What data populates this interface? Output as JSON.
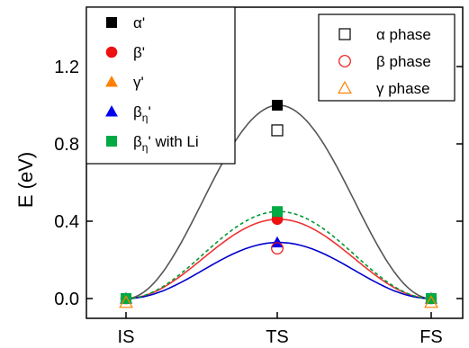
{
  "chart_data": {
    "type": "line",
    "categories": [
      "IS",
      "TS",
      "FS"
    ],
    "title": "",
    "xlabel": "",
    "ylabel": "E (eV)",
    "ylim": [
      -0.1,
      1.5
    ],
    "yticks": [
      0.0,
      0.4,
      0.8,
      1.2
    ],
    "ytick_labels": [
      "0.0",
      "0.4",
      "0.8",
      "1.2"
    ],
    "grid": false,
    "series": [
      {
        "name": "α'",
        "marker": "filled-square",
        "color": "#000000",
        "curve_color": "#555555",
        "curve_style": "solid",
        "values": [
          0.0,
          1.0,
          0.0
        ]
      },
      {
        "name": "β'",
        "marker": "filled-circle",
        "color": "#ee1111",
        "curve_color": "#ee3333",
        "curve_style": "solid",
        "values": [
          0.0,
          0.41,
          0.0
        ]
      },
      {
        "name": "γ'",
        "marker": "filled-triangle",
        "color": "#ff8000",
        "curve_color": "",
        "curve_style": "none",
        "values": [
          0.0,
          null,
          0.0
        ]
      },
      {
        "name": "βη'",
        "marker": "filled-triangle",
        "color": "#0000ee",
        "curve_color": "#0000cc",
        "curve_style": "solid",
        "values": [
          0.0,
          0.29,
          0.0
        ]
      },
      {
        "name": "βη' with Li",
        "marker": "filled-square",
        "color": "#00aa44",
        "curve_color": "#009933",
        "curve_style": "dashed",
        "values": [
          0.0,
          0.45,
          0.0
        ]
      },
      {
        "name": "α phase",
        "marker": "open-square",
        "color": "#000000",
        "curve_style": "none",
        "values": [
          null,
          0.87,
          null
        ]
      },
      {
        "name": "β phase",
        "marker": "open-circle",
        "color": "#ee1111",
        "curve_style": "none",
        "values": [
          null,
          0.26,
          null
        ]
      },
      {
        "name": "γ phase",
        "marker": "open-triangle",
        "color": "#ff8000",
        "curve_style": "none",
        "values": [
          -0.02,
          null,
          -0.02
        ]
      }
    ],
    "legends": [
      {
        "placement": "top-left",
        "entries": [
          {
            "marker": "filled-square",
            "color": "#000000",
            "base": "α",
            "sub": "",
            "suffix": "'"
          },
          {
            "marker": "filled-circle",
            "color": "#ee1111",
            "base": "β",
            "sub": "",
            "suffix": "'"
          },
          {
            "marker": "filled-triangle",
            "color": "#ff8000",
            "base": "γ",
            "sub": "",
            "suffix": "'"
          },
          {
            "marker": "filled-triangle",
            "color": "#0000ee",
            "base": "β",
            "sub": "η",
            "suffix": "'"
          },
          {
            "marker": "filled-square",
            "color": "#00aa44",
            "base": "β",
            "sub": "η",
            "suffix": "' with Li"
          }
        ]
      },
      {
        "placement": "top-right",
        "entries": [
          {
            "marker": "open-square",
            "color": "#000000",
            "base": "α phase",
            "sub": "",
            "suffix": ""
          },
          {
            "marker": "open-circle",
            "color": "#ee1111",
            "base": "β phase",
            "sub": "",
            "suffix": ""
          },
          {
            "marker": "open-triangle",
            "color": "#ff8000",
            "base": "γ phase",
            "sub": "",
            "suffix": ""
          }
        ]
      }
    ]
  }
}
